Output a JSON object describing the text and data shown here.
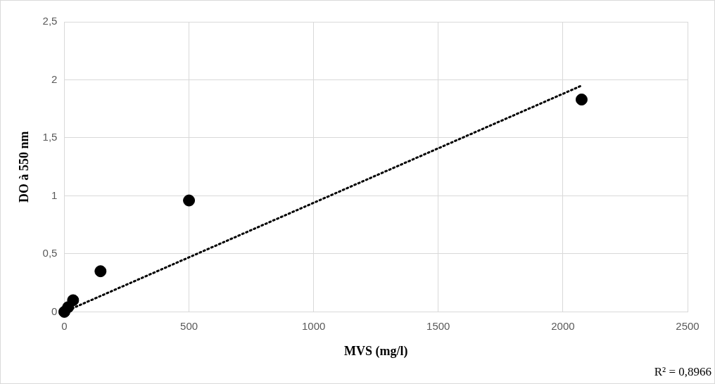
{
  "chart_data": {
    "type": "scatter",
    "xlabel": "MVS (mg/l)",
    "ylabel": "DO à 550 nm",
    "xlim": [
      0,
      2500
    ],
    "xticks": [
      0,
      500,
      1000,
      1500,
      2000,
      2500
    ],
    "ylim": [
      0,
      2.5
    ],
    "yticks": [
      0,
      {
        "value": 0.5,
        "label": "0,5"
      },
      1,
      {
        "value": 1.5,
        "label": "1,5"
      },
      2,
      {
        "value": 2.5,
        "label": "2,5"
      }
    ],
    "grid": true,
    "legend": false,
    "series": [
      {
        "color": "#000000",
        "marker": "circle",
        "x": [
          0,
          5,
          15,
          35,
          145,
          500,
          2075
        ],
        "values": [
          0,
          null,
          0.04,
          0.1,
          0.35,
          0.96,
          1.83
        ]
      },
      {
        "type": "line",
        "color": "#000000",
        "marker": "none",
        "line_style": "dotted",
        "x": [
          0,
          2075
        ],
        "values": [
          0,
          1.95
        ]
      }
    ],
    "annotations": [
      "R² = 0,8966"
    ]
  }
}
